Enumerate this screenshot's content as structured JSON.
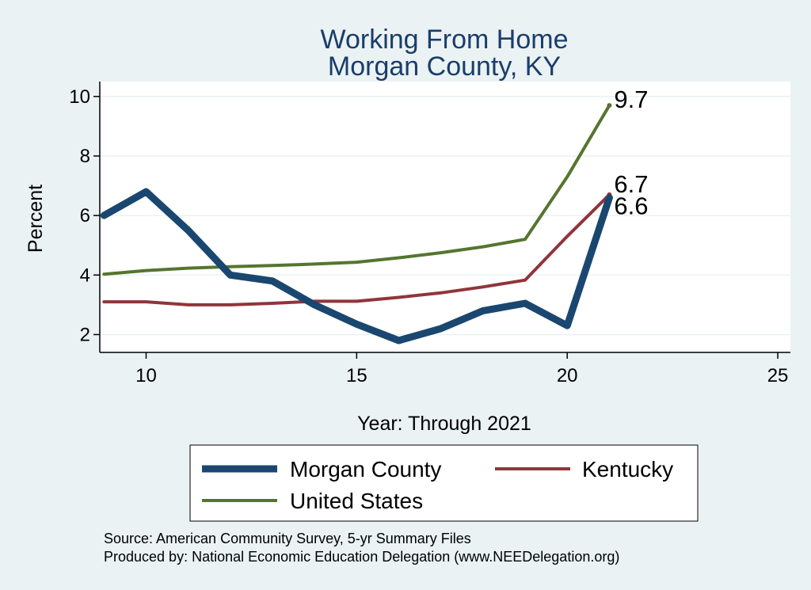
{
  "chart_data": {
    "type": "line",
    "title": [
      "Working From Home",
      "Morgan County, KY"
    ],
    "xlabel": "Year: Through 2021",
    "ylabel": "Percent",
    "xlim": [
      8.9,
      25.3
    ],
    "ylim": [
      1.4,
      10.5
    ],
    "xticks": [
      10,
      15,
      20,
      25
    ],
    "yticks": [
      2,
      4,
      6,
      8,
      10
    ],
    "grid": true,
    "legend_position": "bottom",
    "x": [
      9,
      10,
      11,
      12,
      13,
      14,
      15,
      16,
      17,
      18,
      19,
      20,
      21
    ],
    "series": [
      {
        "name": "Morgan County",
        "color": "#1a476f",
        "width": 9,
        "values": [
          6.0,
          6.8,
          5.5,
          4.0,
          3.8,
          3.0,
          2.35,
          1.8,
          2.2,
          2.8,
          3.05,
          2.3,
          6.6
        ]
      },
      {
        "name": "Kentucky",
        "color": "#90353b",
        "width": 4,
        "values": [
          3.1,
          3.1,
          3.0,
          3.0,
          3.05,
          3.12,
          3.12,
          3.25,
          3.4,
          3.6,
          3.83,
          5.3,
          6.7
        ]
      },
      {
        "name": "United States",
        "color": "#55752f",
        "width": 4,
        "values": [
          4.03,
          4.15,
          4.23,
          4.28,
          4.32,
          4.37,
          4.43,
          4.58,
          4.75,
          4.95,
          5.2,
          7.3,
          9.7
        ]
      }
    ],
    "end_labels": [
      {
        "series": "United States",
        "text": "9.7"
      },
      {
        "series": "Kentucky",
        "text": "6.7"
      },
      {
        "series": "Morgan County",
        "text": "6.6"
      }
    ],
    "notes": [
      "Source: American Community Survey, 5-yr Summary Files",
      "Produced by: National Economic Education Delegation (www.NEEDelegation.org)"
    ]
  },
  "colors": {
    "background": "#eaf2f3",
    "plot_area": "#ffffff",
    "title": "#1a3d6b"
  }
}
